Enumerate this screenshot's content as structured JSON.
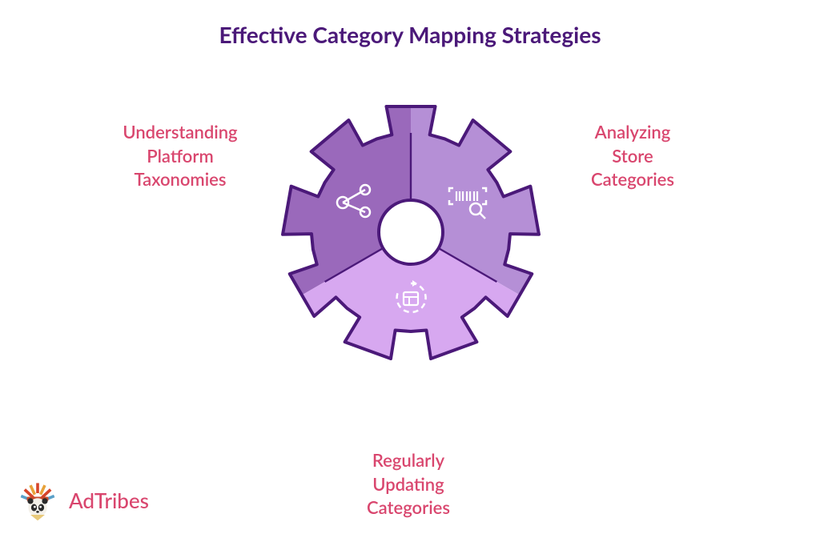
{
  "title": {
    "text": "Effective Category Mapping Strategies",
    "color": "#4b1979",
    "fontsize": 28
  },
  "labels": {
    "color": "#d9466e",
    "fontsize": 22,
    "left": {
      "lines": [
        "Understanding",
        "Platform",
        "Taxonomies"
      ]
    },
    "right": {
      "lines": [
        "Analyzing",
        "Store",
        "Categories"
      ]
    },
    "bottom": {
      "lines": [
        "Regularly",
        "Updating",
        "Categories"
      ]
    }
  },
  "gear": {
    "outline_color": "#4b1979",
    "outline_width": 4,
    "icon_color": "#ffffff",
    "center_fill": "#ffffff",
    "sectors": [
      {
        "name": "top-left",
        "fill": "#9a69bb"
      },
      {
        "name": "top-right",
        "fill": "#b58fd6"
      },
      {
        "name": "bottom",
        "fill": "#d7a8f0"
      }
    ]
  },
  "brand": {
    "name": "AdTribes",
    "color": "#d9466e"
  },
  "background_color": "#ffffff"
}
